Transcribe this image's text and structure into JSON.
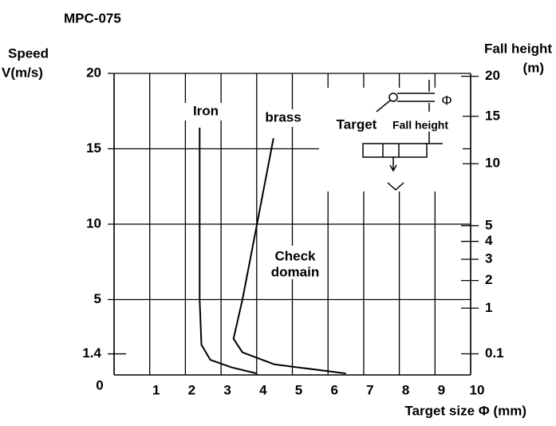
{
  "chart_data": {
    "type": "line",
    "title": "MPC-075",
    "ylabel": [
      "Speed",
      "V(m/s)"
    ],
    "y2label": [
      "Fall height",
      "(m)"
    ],
    "xlabel": "Target size  Φ  (mm)",
    "xlim": [
      0,
      10
    ],
    "xticks": [
      0,
      1,
      2,
      3,
      4,
      5,
      6,
      7,
      8,
      9,
      10
    ],
    "ylim": [
      0,
      20
    ],
    "yticks": [
      0,
      1.4,
      5,
      10,
      15,
      20
    ],
    "y2scale": "free-fall",
    "y2ticks": [
      20,
      15,
      10,
      5,
      4,
      3,
      2,
      1,
      0.1
    ],
    "grid": true,
    "series": [
      {
        "name": "Iron",
        "color": "#000000",
        "x": [
          2.4,
          2.4,
          2.4,
          2.45,
          2.7,
          3.3,
          4.0
        ],
        "values": [
          16.4,
          10,
          5,
          2,
          1,
          0.5,
          0.1
        ]
      },
      {
        "name": "brass",
        "color": "#000000",
        "x": [
          4.47,
          4.0,
          3.6,
          3.35,
          3.6,
          4.5,
          6.5
        ],
        "values": [
          15.7,
          9.9,
          5,
          2.4,
          1.5,
          0.7,
          0.1
        ]
      }
    ],
    "annotations": [
      "Check",
      "domain",
      "Target",
      "Fall height",
      "Φ"
    ]
  }
}
